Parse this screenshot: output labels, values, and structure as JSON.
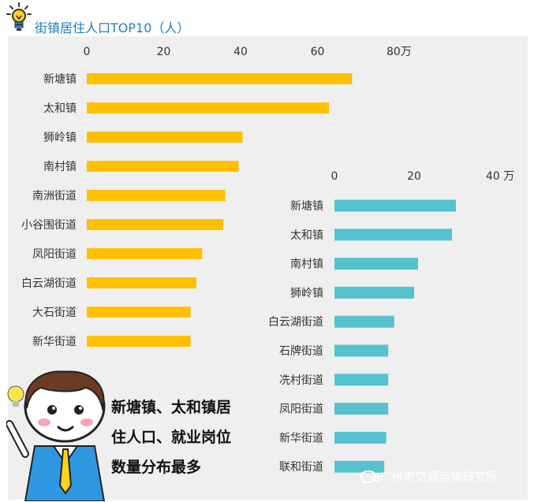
{
  "header": {
    "title": "街镇居住人口TOP10（人）",
    "icon": "lightbulb-icon"
  },
  "callout": {
    "lines": [
      "新塘镇、太和镇居",
      "住人口、就业岗位",
      "数量分布最多"
    ]
  },
  "watermark": {
    "text": "广州市交通运输研究所",
    "icon": "wechat-icon"
  },
  "chart_data": [
    {
      "type": "bar",
      "orientation": "horizontal",
      "title": "街镇居住人口TOP10（人）",
      "unit_label": "万",
      "xlim": [
        0,
        80
      ],
      "ticks": [
        0,
        20,
        40,
        60,
        80
      ],
      "tick_labels": [
        "0",
        "20",
        "40",
        "60",
        "80万"
      ],
      "categories": [
        "新塘镇",
        "太和镇",
        "狮岭镇",
        "南村镇",
        "南洲街道",
        "小谷围街道",
        "凤阳街道",
        "白云湖街道",
        "大石街道",
        "新华街道"
      ],
      "values": [
        69,
        63,
        40.5,
        39.5,
        36,
        35.5,
        30,
        28.5,
        27,
        27
      ],
      "color": "#ffc000",
      "grid": false
    },
    {
      "type": "bar",
      "orientation": "horizontal",
      "unit_label": "万",
      "xlim": [
        0,
        40
      ],
      "ticks": [
        0,
        20,
        40
      ],
      "tick_labels": [
        "0",
        "20",
        "40 万"
      ],
      "categories": [
        "新塘镇",
        "太和镇",
        "南村镇",
        "狮岭镇",
        "白云湖街道",
        "石牌街道",
        "冼村街道",
        "凤阳街道",
        "新华街道",
        "联和街道"
      ],
      "values": [
        30.5,
        29.5,
        21,
        20,
        15,
        13.5,
        13.5,
        13.5,
        13,
        12.5
      ],
      "color": "#56c1cf",
      "grid": false
    }
  ]
}
